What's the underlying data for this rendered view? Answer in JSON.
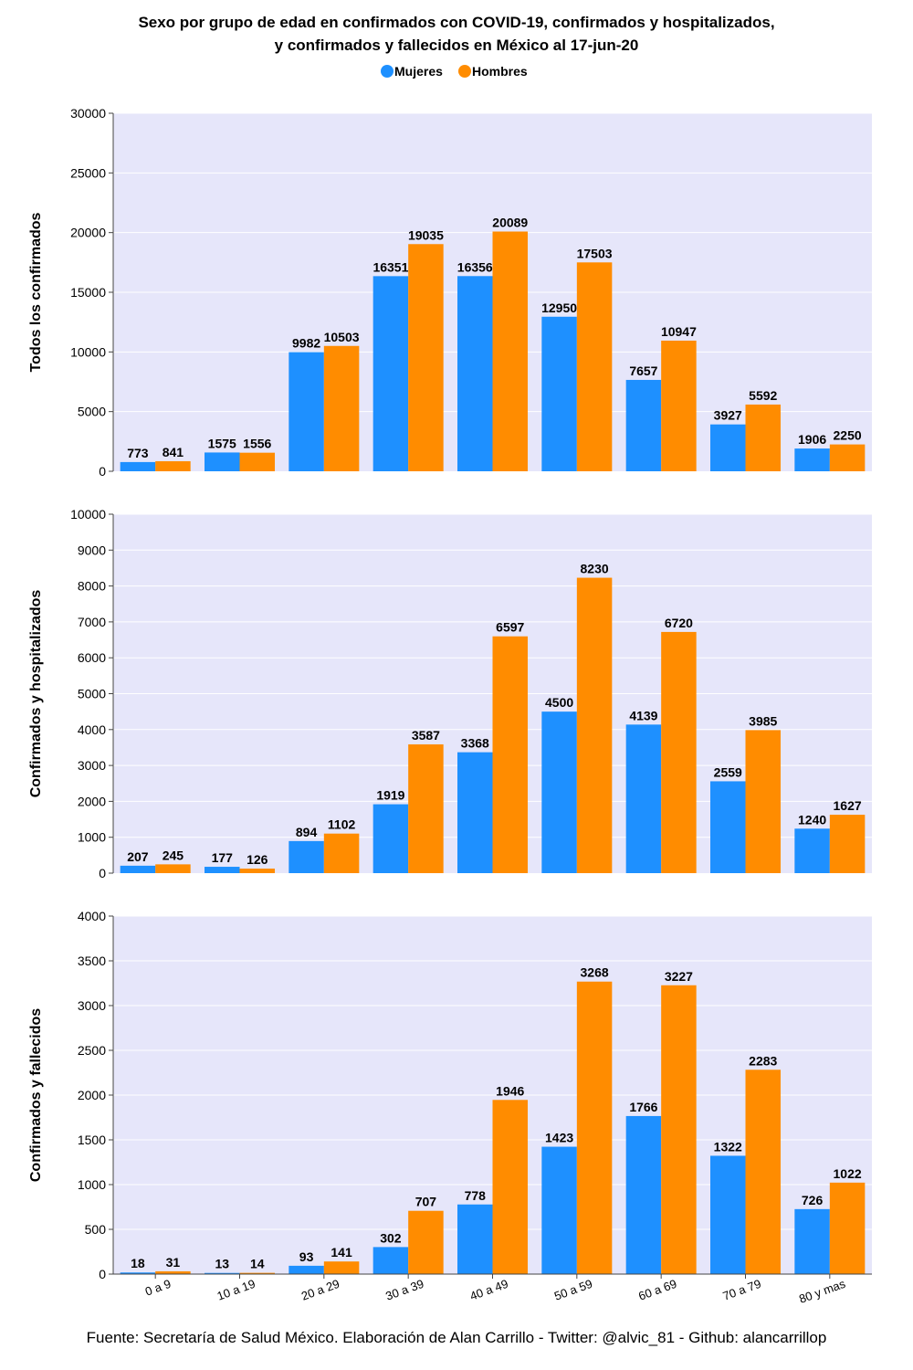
{
  "chart_data": {
    "type": "bar",
    "title_lines": [
      "Sexo por grupo de edad en confirmados con COVID-19, confirmados y hospitalizados,",
      "y confirmados y fallecidos en México al 17-jun-20"
    ],
    "legend": [
      {
        "name": "Mujeres",
        "color": "#1e90ff"
      },
      {
        "name": "Hombres",
        "color": "#ff8c00"
      }
    ],
    "categories": [
      "0 a 9",
      "10 a 19",
      "20 a 29",
      "30 a 39",
      "40 a 49",
      "50 a 59",
      "60 a 69",
      "70 a 79",
      "80 y mas"
    ],
    "panels": [
      {
        "ylabel": "Todos los confirmados",
        "ylim": [
          0,
          30000
        ],
        "yticks": [
          0,
          5000,
          10000,
          15000,
          20000,
          25000,
          30000
        ],
        "series": [
          {
            "name": "Mujeres",
            "values": [
              773,
              1575,
              9982,
              16351,
              16356,
              12950,
              7657,
              3927,
              1906
            ]
          },
          {
            "name": "Hombres",
            "values": [
              841,
              1556,
              10503,
              19035,
              20089,
              17503,
              10947,
              5592,
              2250
            ]
          }
        ]
      },
      {
        "ylabel": "Confirmados y hospitalizados",
        "ylim": [
          0,
          10000
        ],
        "yticks": [
          0,
          1000,
          2000,
          3000,
          4000,
          5000,
          6000,
          7000,
          8000,
          9000,
          10000
        ],
        "series": [
          {
            "name": "Mujeres",
            "values": [
              207,
              177,
              894,
              1919,
              3368,
              4500,
              4139,
              2559,
              1240
            ]
          },
          {
            "name": "Hombres",
            "values": [
              245,
              126,
              1102,
              3587,
              6597,
              8230,
              6720,
              3985,
              1627
            ]
          }
        ]
      },
      {
        "ylabel": "Confirmados y fallecidos",
        "ylim": [
          0,
          4000
        ],
        "yticks": [
          0,
          500,
          1000,
          1500,
          2000,
          2500,
          3000,
          3500,
          4000
        ],
        "series": [
          {
            "name": "Mujeres",
            "values": [
              18,
              13,
              93,
              302,
              778,
              1423,
              1766,
              1322,
              726
            ]
          },
          {
            "name": "Hombres",
            "values": [
              31,
              14,
              141,
              707,
              1946,
              3268,
              3227,
              2283,
              1022
            ]
          }
        ]
      }
    ],
    "plot_background": "#e6e6fa",
    "grid": true,
    "legend_position": "top-center",
    "source": "Fuente: Secretaría de Salud México. Elaboración de Alan Carrillo - Twitter: @alvic_81 - Github: alancarrillop"
  }
}
